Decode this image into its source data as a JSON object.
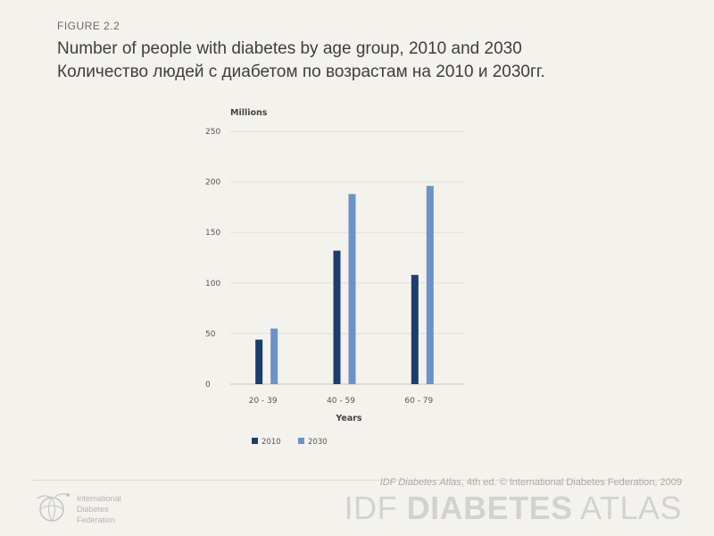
{
  "figure_label": "FIGURE 2.2",
  "title_line1": "Number of people with diabetes by age group, 2010 and 2030",
  "title_line2": "Количество людей с диабетом по возрастам на 2010 и 2030гг.",
  "chart_data": {
    "type": "bar",
    "categories": [
      "20 - 39",
      "40 - 59",
      "60 - 79"
    ],
    "series": [
      {
        "name": "2010",
        "values": [
          44,
          132,
          108
        ],
        "color": "#1b3e6f"
      },
      {
        "name": "2030",
        "values": [
          55,
          188,
          196
        ],
        "color": "#6b93c9"
      }
    ],
    "ylabel": "Millions",
    "xlabel": "Years",
    "ylim": [
      0,
      250
    ],
    "yticks": [
      0,
      50,
      100,
      150,
      200,
      250
    ],
    "grid": true,
    "legend_position": "bottom-left"
  },
  "footer": {
    "credit_italic": "IDF Diabetes Atlas",
    "credit_rest": ", 4th ed.  © International Diabetes Federation, 2009",
    "brand_prefix": "IDF ",
    "brand_bold": "DIABETES",
    "brand_suffix": " ATLAS",
    "org_line1": "International",
    "org_line2": "Diabetes",
    "org_line3": "Federation",
    "colors": {
      "brand": "#d2d2d2",
      "credit": "#a9a9a9"
    }
  },
  "icons": {
    "logo": "idf-globe-logo-icon"
  }
}
